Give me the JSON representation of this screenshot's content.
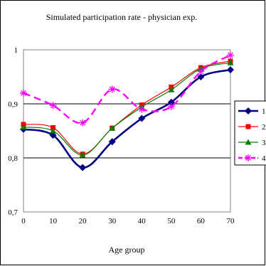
{
  "chart_data": {
    "type": "line",
    "title": "Simulated participation rate - physician exp.",
    "xlabel": "Age group",
    "ylabel": "",
    "x": [
      0,
      10,
      20,
      30,
      40,
      50,
      60,
      70
    ],
    "x_ticks": [
      "0",
      "10",
      "20",
      "30",
      "40",
      "50",
      "60",
      "70"
    ],
    "ylim": [
      0.7,
      1.0
    ],
    "y_ticks": [
      "0,7",
      "0,8",
      "0,9",
      "1"
    ],
    "grid": "horizontal",
    "legend_position": "right",
    "series": [
      {
        "name": "1",
        "color": "#000080",
        "marker": "diamond",
        "dashed": false,
        "values": [
          0.853,
          0.842,
          0.782,
          0.83,
          0.873,
          0.903,
          0.95,
          0.963
        ]
      },
      {
        "name": "2",
        "color": "#ff0000",
        "marker": "square",
        "dashed": false,
        "values": [
          0.862,
          0.856,
          0.807,
          0.855,
          0.898,
          0.931,
          0.967,
          0.979
        ]
      },
      {
        "name": "3",
        "color": "#008000",
        "marker": "triangle",
        "dashed": false,
        "values": [
          0.857,
          0.85,
          0.805,
          0.855,
          0.894,
          0.926,
          0.965,
          0.976
        ]
      },
      {
        "name": "4",
        "color": "#ff00ff",
        "marker": "asterisk",
        "dashed": true,
        "values": [
          0.92,
          0.897,
          0.865,
          0.927,
          0.89,
          0.895,
          0.96,
          0.99
        ]
      }
    ]
  }
}
